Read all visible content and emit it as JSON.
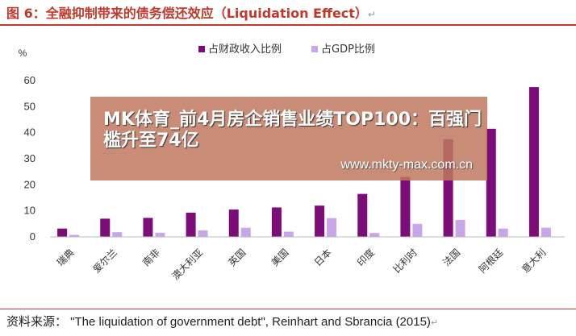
{
  "figure": {
    "title": "图 6：全融抑制带来的债务偿还效应（Liquidation Effect）",
    "source": "资料来源：  \"The liquidation of government debt\", Reinhart and Sbrancia (2015)"
  },
  "overlay": {
    "headline": "MK体育_前4月房企销售业绩TOP100：百强门槛升至74亿",
    "url": "www.mkty-max.com.cn"
  },
  "chart_data": {
    "type": "bar",
    "ylabel": "%",
    "ylim": [
      0,
      60
    ],
    "yticks": [
      0,
      10,
      20,
      30,
      40,
      50,
      60
    ],
    "grid": false,
    "legend_position": "top",
    "categories": [
      "瑞典",
      "爱尔兰",
      "南非",
      "澳大利亚",
      "英国",
      "美国",
      "日本",
      "印度",
      "比利时",
      "法国",
      "阿根廷",
      "意大利"
    ],
    "series": [
      {
        "name": "占财政收入比例",
        "color": "#7b0c78",
        "values": [
          3.2,
          7.0,
          7.3,
          9.3,
          10.5,
          11.3,
          12.0,
          16.5,
          23.0,
          37.5,
          41.5,
          57.5
        ]
      },
      {
        "name": "占GDP比例",
        "color": "#c9a6ea",
        "values": [
          0.8,
          1.8,
          1.6,
          2.5,
          3.5,
          2.0,
          7.2,
          1.5,
          5.0,
          6.5,
          3.2,
          3.5
        ]
      }
    ]
  }
}
